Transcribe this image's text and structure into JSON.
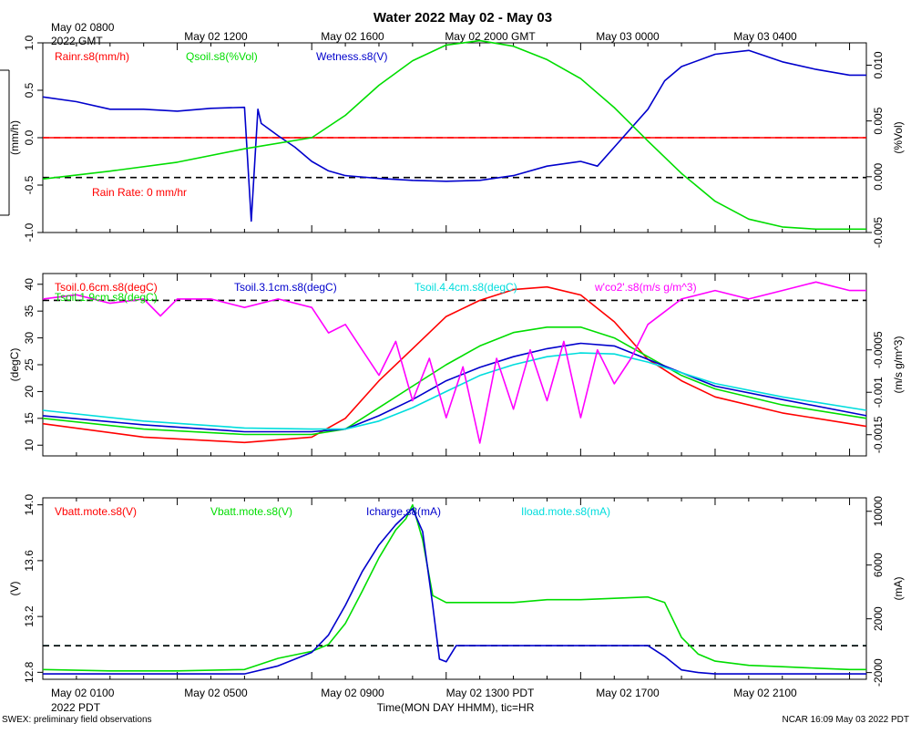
{
  "chart_data": {
    "type": "line",
    "title": "Water 2022 May 02 - May 03",
    "top_axis": {
      "first_label": [
        "May 02 0800",
        "2022 GMT"
      ],
      "labels": [
        "May 02 1200",
        "May 02 1600",
        "May 02 2000 GMT",
        "May 03 0000",
        "May 03 0400"
      ]
    },
    "bottom_axis": {
      "first_label": [
        "May 02 0100",
        "2022 PDT"
      ],
      "labels": [
        "May 02 0500",
        "May 02 0900",
        "May 02 1300 PDT",
        "May 02 1700",
        "May 02 2100"
      ],
      "xlabel": "Time(MON DAY HHMM), tic=HR"
    },
    "x_hours_pdt": [
      0,
      24.5
    ],
    "footer_left": "SWEX: preliminary field observations",
    "footer_right": "NCAR 16:09 May 03 2022 PDT",
    "panels": [
      {
        "id": "water",
        "ylabel": "(mm/h)",
        "ylabel_right": "(%Vol)",
        "ylim": [
          -1.0,
          1.0
        ],
        "yticks": [
          "1.0",
          "0.5",
          "0.0",
          "-0.5",
          "-1.0"
        ],
        "ylim_right": [
          -0.005,
          0.012
        ],
        "yticks_right": [
          "0.010",
          "0.005",
          "0.000",
          "-0.005"
        ],
        "legend": [
          {
            "label": "Rainr.s8(mm/h)",
            "color": "#ff0000"
          },
          {
            "label": "Qsoil.s8(%Vol)",
            "color": "#00dd00"
          },
          {
            "label": "Wetness.s8(V)",
            "color": "#0000cc"
          }
        ],
        "annotation": {
          "text": "Rain Rate: 0 mm/hr",
          "color": "#ff0000"
        },
        "reference_lines": [
          {
            "value": 0.0,
            "color": "#ff0000",
            "axis": "left"
          },
          {
            "value": -0.42,
            "color": "#000000",
            "axis": "left"
          }
        ],
        "series": [
          {
            "name": "Rainr.s8",
            "color": "#ff0000",
            "axis": "left",
            "x": [
              0,
              24.5
            ],
            "y": [
              0,
              0
            ]
          },
          {
            "name": "Wetness.s8",
            "color": "#0000cc",
            "axis": "left",
            "x": [
              0,
              1,
              2,
              3,
              4,
              5,
              6,
              6.2,
              6.4,
              6.5,
              7,
              7.5,
              8,
              8.5,
              9,
              10,
              11,
              12,
              13,
              14,
              15,
              16,
              16.5,
              17,
              18,
              18.5,
              19,
              20,
              21,
              22,
              23,
              24,
              24.5
            ],
            "y": [
              0.43,
              0.38,
              0.3,
              0.3,
              0.28,
              0.31,
              0.32,
              -0.88,
              0.3,
              0.15,
              0.02,
              -0.1,
              -0.25,
              -0.35,
              -0.4,
              -0.43,
              -0.45,
              -0.46,
              -0.45,
              -0.4,
              -0.3,
              -0.25,
              -0.3,
              -0.1,
              0.3,
              0.6,
              0.75,
              0.88,
              0.92,
              0.8,
              0.72,
              0.66,
              0.66
            ]
          },
          {
            "name": "Qsoil.s8",
            "color": "#00dd00",
            "axis": "right",
            "x": [
              0,
              2,
              4,
              6,
              8,
              9,
              10,
              11,
              12,
              13,
              14,
              15,
              16,
              17,
              18,
              19,
              20,
              21,
              22,
              23,
              24,
              24.5
            ],
            "y": [
              -0.0002,
              0.0005,
              0.0013,
              0.0025,
              0.0035,
              0.0055,
              0.0082,
              0.0104,
              0.0118,
              0.0122,
              0.0117,
              0.0105,
              0.0088,
              0.0062,
              0.0032,
              0.0003,
              -0.0022,
              -0.0038,
              -0.0045,
              -0.0047,
              -0.0047,
              -0.0047
            ]
          }
        ]
      },
      {
        "id": "tsoil",
        "ylabel": "(degC)",
        "ylabel_right": "(m/s g/m^3)",
        "ylim": [
          8,
          42
        ],
        "yticks": [
          "40",
          "35",
          "30",
          "25",
          "20",
          "15",
          "10"
        ],
        "ylim_right": [
          -0.00175,
          0.0004
        ],
        "yticks_right": [
          "-0.0005",
          "-0.001",
          "-0.0015"
        ],
        "legend": [
          {
            "label": "Tsoil.0.6cm.s8(degC)",
            "color": "#ff0000"
          },
          {
            "label": "Tsoil.1.9cm.s8(degC)",
            "color": "#00dd00"
          },
          {
            "label": "Tsoil.3.1cm.s8(degC)",
            "color": "#0000cc"
          },
          {
            "label": "Tsoil.4.4cm.s8(degC)",
            "color": "#00dddd"
          },
          {
            "label": "w'co2'.s8(m/s g/m^3)",
            "color": "#ff00ff"
          }
        ],
        "reference_lines": [
          {
            "value": 37,
            "color": "#000000",
            "axis": "left"
          }
        ],
        "series": [
          {
            "name": "Tsoil.0.6cm.s8",
            "color": "#ff0000",
            "axis": "left",
            "x": [
              0,
              3,
              6,
              8,
              9,
              10,
              11,
              12,
              13,
              14,
              15,
              16,
              17,
              18,
              19,
              20,
              22,
              24.5
            ],
            "y": [
              14,
              11.5,
              10.5,
              11.5,
              15,
              22,
              28,
              34,
              37,
              39,
              39.5,
              38,
              33,
              26,
              22,
              19,
              16,
              13.5
            ]
          },
          {
            "name": "Tsoil.1.9cm.s8",
            "color": "#00dd00",
            "axis": "left",
            "x": [
              0,
              3,
              6,
              8,
              9,
              10,
              11,
              12,
              13,
              14,
              15,
              16,
              17,
              18,
              19,
              20,
              22,
              24.5
            ],
            "y": [
              15,
              13,
              12,
              12,
              13,
              17,
              21,
              25,
              28.5,
              31,
              32,
              32,
              30,
              26.5,
              23,
              20.5,
              17.5,
              15
            ]
          },
          {
            "name": "Tsoil.3.1cm.s8",
            "color": "#0000cc",
            "axis": "left",
            "x": [
              0,
              3,
              6,
              8,
              9,
              10,
              11,
              12,
              13,
              14,
              15,
              16,
              17,
              18,
              19,
              20,
              22,
              24.5
            ],
            "y": [
              15.5,
              13.8,
              12.5,
              12.5,
              13,
              15.5,
              18.5,
              22,
              24.5,
              26.5,
              28,
              29,
              28.5,
              26,
              23.5,
              21,
              18.5,
              15.5
            ]
          },
          {
            "name": "Tsoil.4.4cm.s8",
            "color": "#00dddd",
            "axis": "left",
            "x": [
              0,
              3,
              6,
              8,
              9,
              10,
              11,
              12,
              13,
              14,
              15,
              16,
              17,
              18,
              19,
              20,
              22,
              24.5
            ],
            "y": [
              16.5,
              14.5,
              13.2,
              13,
              13,
              14.5,
              17,
              20,
              23,
              25,
              26.5,
              27.2,
              27,
              25.5,
              23.5,
              21.5,
              19,
              16.5
            ]
          },
          {
            "name": "w'co2'.s8",
            "color": "#ff00ff",
            "axis": "right",
            "x": [
              0,
              1,
              2,
              3,
              3.5,
              4,
              5,
              6,
              7,
              8,
              8.5,
              9,
              9.5,
              10,
              10.5,
              11,
              11.5,
              12,
              12.5,
              13,
              13.5,
              14,
              14.5,
              15,
              15.5,
              16,
              16.5,
              17,
              17.5,
              18,
              19,
              20,
              21,
              22,
              23,
              24,
              24.5
            ],
            "y": [
              0.0001,
              0.00015,
              5e-05,
              0.0001,
              -0.0001,
              0.0001,
              0.0001,
              0.0,
              0.0001,
              0.0,
              -0.0003,
              -0.0002,
              -0.0005,
              -0.0008,
              -0.0004,
              -0.0011,
              -0.0006,
              -0.0013,
              -0.0007,
              -0.0016,
              -0.0006,
              -0.0012,
              -0.0005,
              -0.0011,
              -0.0004,
              -0.0013,
              -0.0005,
              -0.0009,
              -0.0006,
              -0.0002,
              0.0001,
              0.0002,
              0.0001,
              0.0002,
              0.0003,
              0.0002,
              0.0002
            ]
          }
        ]
      },
      {
        "id": "power",
        "ylabel": "(V)",
        "ylabel_right": "(mA)",
        "ylim": [
          12.75,
          14.05
        ],
        "yticks": [
          "14.0",
          "13.6",
          "13.2",
          "12.8"
        ],
        "ylim_right": [
          -2500,
          11000
        ],
        "yticks_right": [
          "10000",
          "6000",
          "2000",
          "-2000"
        ],
        "legend": [
          {
            "label": "Vbatt.mote.s8(V)",
            "color": "#ff0000"
          },
          {
            "label": "Vbatt.mote.s8(V)",
            "color": "#00dd00"
          },
          {
            "label": "Icharge.s8(mA)",
            "color": "#0000cc"
          },
          {
            "label": "Iload.mote.s8(mA)",
            "color": "#00dddd"
          }
        ],
        "reference_lines": [
          {
            "value": 0,
            "color": "#00dddd",
            "axis": "right"
          },
          {
            "value": 0,
            "color": "#000000",
            "axis": "right"
          }
        ],
        "series": [
          {
            "name": "Vbatt.mote.s8 (green)",
            "color": "#00dd00",
            "axis": "left",
            "x": [
              0,
              2,
              4,
              6,
              7,
              8,
              8.5,
              9,
              9.5,
              10,
              10.5,
              10.8,
              11,
              11.3,
              11.6,
              12,
              13,
              14,
              15,
              16,
              17,
              18,
              18.5,
              19,
              19.5,
              20,
              21,
              22,
              23,
              24,
              24.5
            ],
            "y": [
              12.82,
              12.81,
              12.81,
              12.82,
              12.9,
              12.95,
              13.0,
              13.15,
              13.38,
              13.62,
              13.82,
              13.9,
              14.0,
              13.75,
              13.35,
              13.3,
              13.3,
              13.3,
              13.32,
              13.32,
              13.33,
              13.34,
              13.3,
              13.05,
              12.93,
              12.88,
              12.85,
              12.84,
              12.83,
              12.82,
              12.82
            ]
          },
          {
            "name": "Icharge.s8",
            "color": "#0000cc",
            "axis": "right",
            "x": [
              0,
              2,
              4,
              6,
              7,
              8,
              8.5,
              9,
              9.5,
              10,
              10.5,
              11,
              11.3,
              11.6,
              11.8,
              12,
              12.3,
              13,
              14,
              15,
              16,
              17,
              18,
              18.5,
              19,
              19.5,
              20,
              21,
              22,
              23,
              24,
              24.5
            ],
            "y": [
              -2100,
              -2100,
              -2100,
              -2100,
              -1500,
              -500,
              800,
              3000,
              5500,
              7500,
              9000,
              10200,
              8500,
              3000,
              -1000,
              -1200,
              0,
              0,
              0,
              0,
              0,
              0,
              0,
              -800,
              -1800,
              -2000,
              -2100,
              -2100,
              -2100,
              -2100,
              -2100,
              -2100
            ]
          }
        ]
      }
    ]
  }
}
